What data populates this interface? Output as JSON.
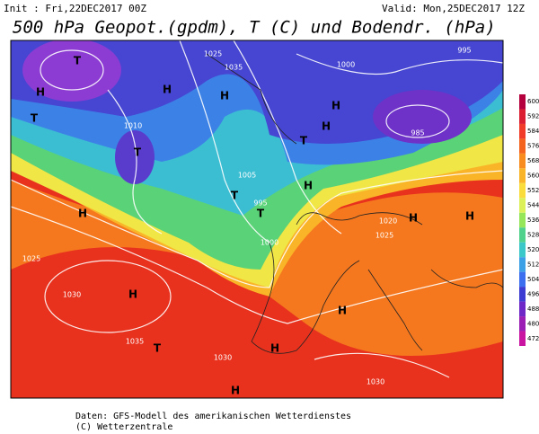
{
  "header": {
    "init": "Init : Fri,22DEC2017 00Z",
    "valid": "Valid: Mon,25DEC2017 12Z",
    "title": "500 hPa Geopot.(gpdm), T (C) und Bodendr. (hPa)"
  },
  "map": {
    "labels": [
      "H",
      "T",
      "H",
      "H",
      "T",
      "T",
      "H",
      "T",
      "T",
      "H",
      "T",
      "H",
      "H",
      "H",
      "H",
      "H",
      "H",
      "T",
      "H",
      "H",
      "1025",
      "1035",
      "1010",
      "1005",
      "995",
      "1000",
      "1030",
      "1025",
      "1020",
      "1025",
      "1030",
      "1030",
      "995",
      "985",
      "1035",
      "1000"
    ]
  },
  "colorbar": {
    "ticks": [
      600,
      592,
      584,
      576,
      568,
      560,
      552,
      544,
      536,
      528,
      520,
      512,
      504,
      496,
      488,
      480,
      472
    ],
    "colors": [
      "#b4003c",
      "#dc1e32",
      "#f03c28",
      "#f5641e",
      "#f88c1e",
      "#fab428",
      "#fadc3c",
      "#dcf05a",
      "#96e65a",
      "#50d28c",
      "#3cc8c8",
      "#3ca0e6",
      "#3c6ef0",
      "#3c3cd2",
      "#6e28c8",
      "#9b1eb4",
      "#c814a0"
    ]
  },
  "footer": {
    "source": "Daten: GFS-Modell des amerikanischen Wetterdienstes",
    "copyright": "(C) Wetterzentrale"
  }
}
